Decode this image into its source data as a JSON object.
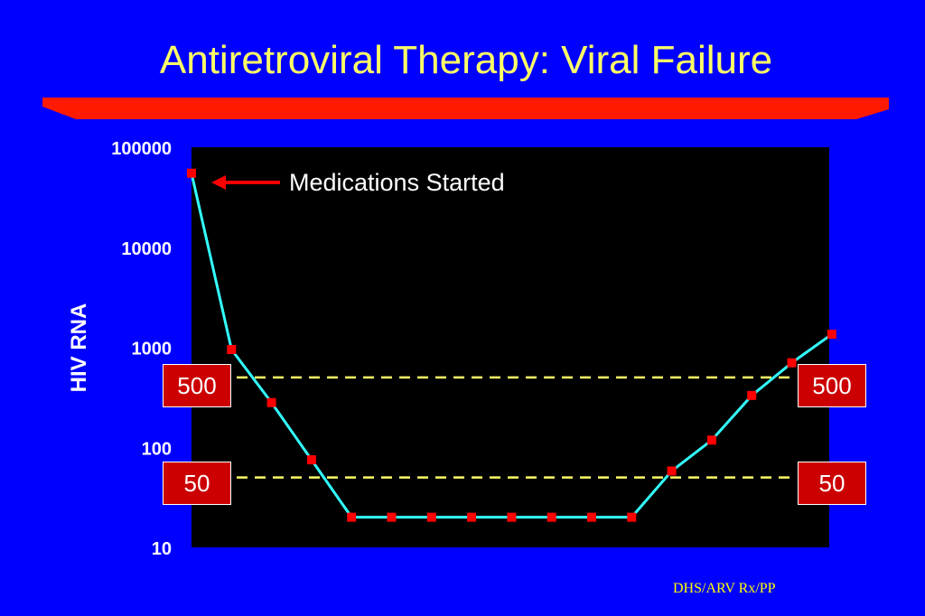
{
  "slide": {
    "title": "Antiretroviral Therapy: Viral Failure",
    "footer": "DHS/ARV Rx/PP",
    "colors": {
      "background": "#0000ff",
      "title": "#ffff66",
      "divider": "#ff1a00",
      "plot_area": "#000000",
      "line": "#33ffff",
      "marker": "#ff0000",
      "reference_line": "#ffff66",
      "reference_box": "#cc0000"
    }
  },
  "chart_data": {
    "type": "line",
    "title": "",
    "xlabel": "",
    "ylabel": "HIV RNA",
    "yscale": "log",
    "ylim": [
      10,
      100000
    ],
    "yticks": [
      "100000",
      "10000",
      "1000",
      "100",
      "10"
    ],
    "grid": false,
    "series": [
      {
        "values": [
          55000,
          950,
          280,
          75,
          20,
          20,
          20,
          20,
          20,
          20,
          20,
          20,
          58,
          118,
          330,
          700,
          1350
        ]
      }
    ],
    "reference_lines": [
      {
        "value": 500,
        "label_left": "500",
        "label_right": "500"
      },
      {
        "value": 50,
        "label_left": "50",
        "label_right": "50"
      }
    ],
    "annotation": {
      "text": "Medications Started",
      "point_index": 0
    }
  }
}
